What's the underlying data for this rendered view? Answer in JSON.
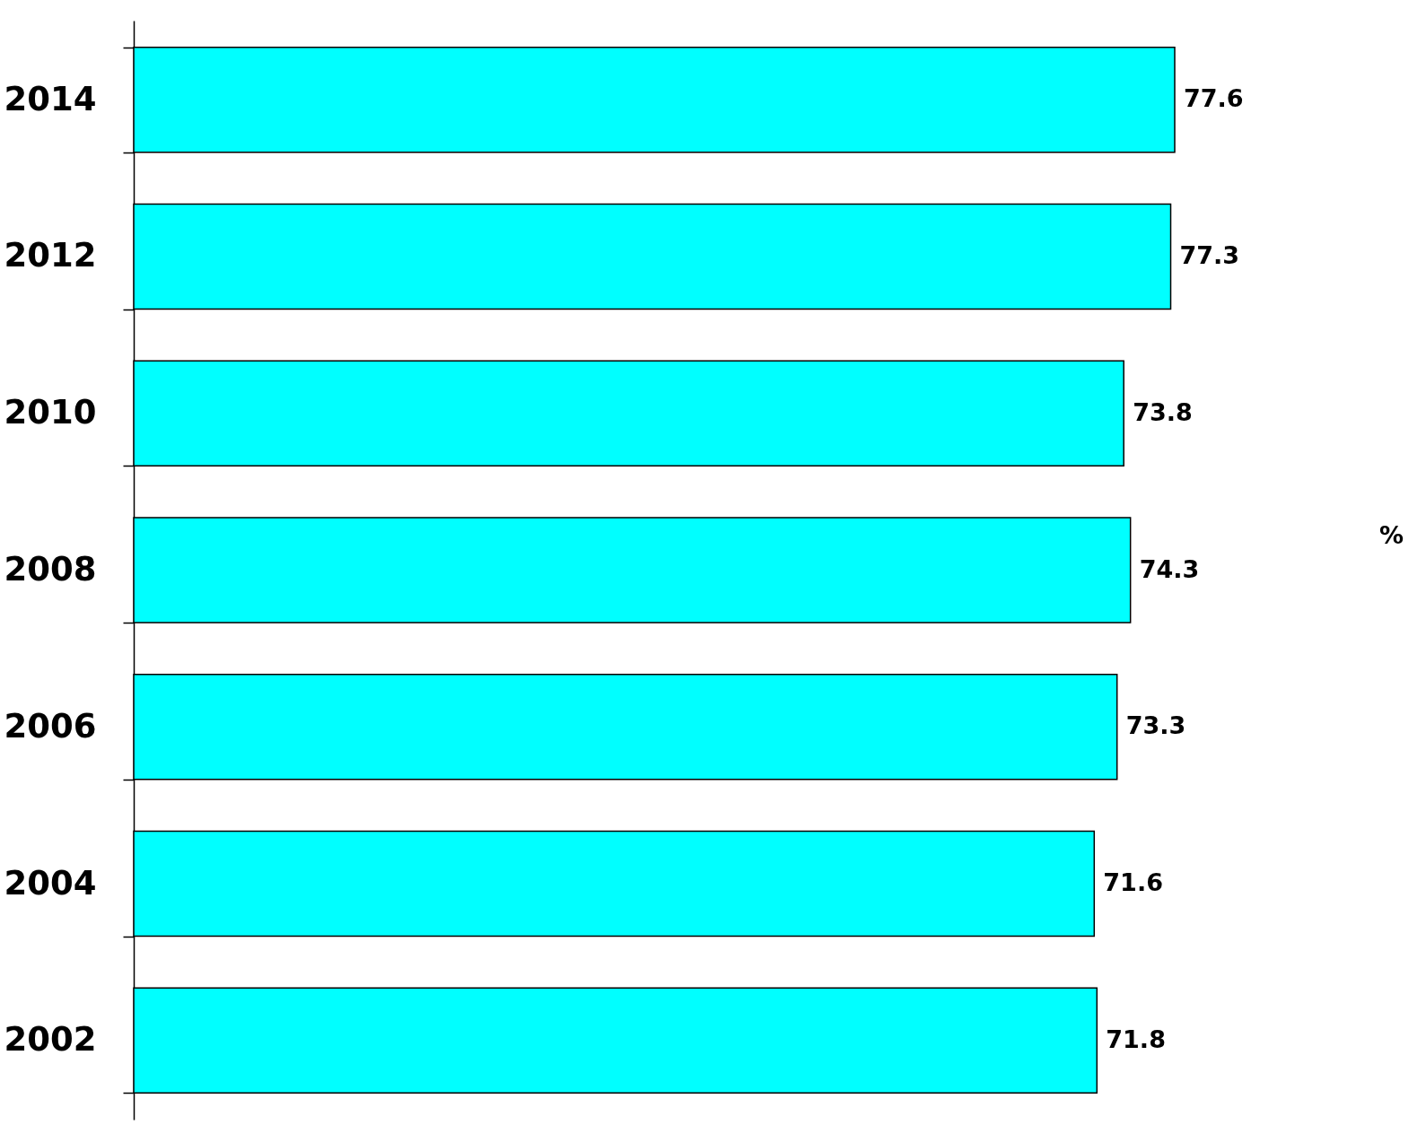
{
  "chart_data": {
    "type": "bar",
    "orientation": "horizontal",
    "categories": [
      "2014",
      "2012",
      "2010",
      "2008",
      "2006",
      "2004",
      "2002"
    ],
    "values": [
      77.6,
      77.3,
      73.8,
      74.3,
      73.3,
      71.6,
      71.8
    ],
    "color": "#00ffff",
    "data_labels": true,
    "tick_labels": "y",
    "annotations": [
      "%"
    ]
  }
}
